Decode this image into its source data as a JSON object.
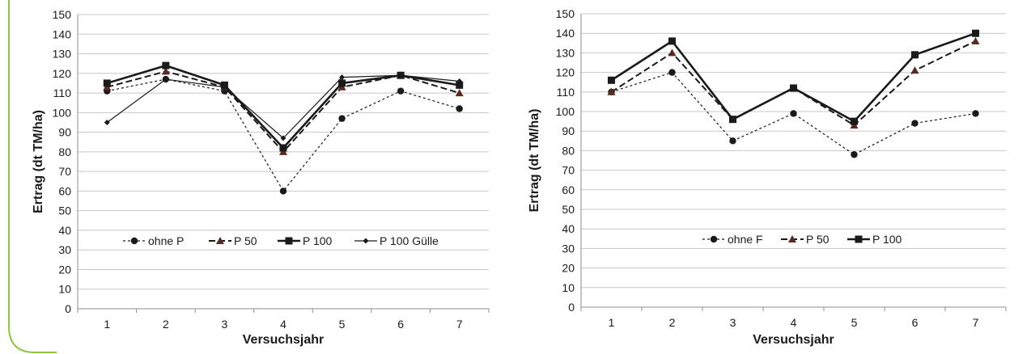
{
  "colors": {
    "frame_border": "#8dc63f",
    "grid": "#c8c8c8",
    "series": "#1a1a1a",
    "triangle_fill": "#5a2a22"
  },
  "chart_data": [
    {
      "type": "line",
      "title": "",
      "xlabel": "Versuchsjahr",
      "ylabel": "Ertrag (dt TM/ha)",
      "ylim": [
        0,
        150
      ],
      "yticks": [
        "0",
        "10",
        "20",
        "30",
        "40",
        "50",
        "60",
        "70",
        "80",
        "90",
        "100",
        "110",
        "120",
        "130",
        "140",
        "150"
      ],
      "categories": [
        "1",
        "2",
        "3",
        "4",
        "5",
        "6",
        "7"
      ],
      "grid": true,
      "legend_position": "inside-bottom",
      "series": [
        {
          "name": "ohne P",
          "marker": "circle",
          "line": "dotted",
          "values": [
            111,
            117,
            111,
            60,
            97,
            111,
            102
          ]
        },
        {
          "name": "P 50",
          "marker": "triangle",
          "line": "dashed",
          "values": [
            113,
            121,
            113,
            80,
            113,
            119,
            110
          ]
        },
        {
          "name": "P 100",
          "marker": "square",
          "line": "solid-bold",
          "values": [
            115,
            124,
            114,
            82,
            115,
            119,
            114
          ]
        },
        {
          "name": "P 100 Gülle",
          "marker": "diamond",
          "line": "solid-thin",
          "values": [
            95,
            117,
            113,
            87,
            118,
            119,
            116
          ]
        }
      ]
    },
    {
      "type": "line",
      "title": "",
      "xlabel": "Versuchsjahr",
      "ylabel": "Ertrag (dt TM/ha)",
      "ylim": [
        0,
        150
      ],
      "yticks": [
        "0",
        "10",
        "20",
        "30",
        "40",
        "50",
        "60",
        "70",
        "80",
        "90",
        "100",
        "110",
        "120",
        "130",
        "140",
        "150"
      ],
      "categories": [
        "1",
        "2",
        "3",
        "4",
        "5",
        "6",
        "7"
      ],
      "grid": true,
      "legend_position": "inside-bottom",
      "series": [
        {
          "name": "ohne F",
          "marker": "circle",
          "line": "dotted",
          "values": [
            110,
            120,
            85,
            99,
            78,
            94,
            99
          ]
        },
        {
          "name": "P 50",
          "marker": "triangle",
          "line": "dashed",
          "values": [
            110,
            130,
            96,
            112,
            93,
            121,
            136
          ]
        },
        {
          "name": "P 100",
          "marker": "square",
          "line": "solid-bold",
          "values": [
            116,
            136,
            96,
            112,
            95,
            129,
            140
          ]
        }
      ]
    }
  ]
}
